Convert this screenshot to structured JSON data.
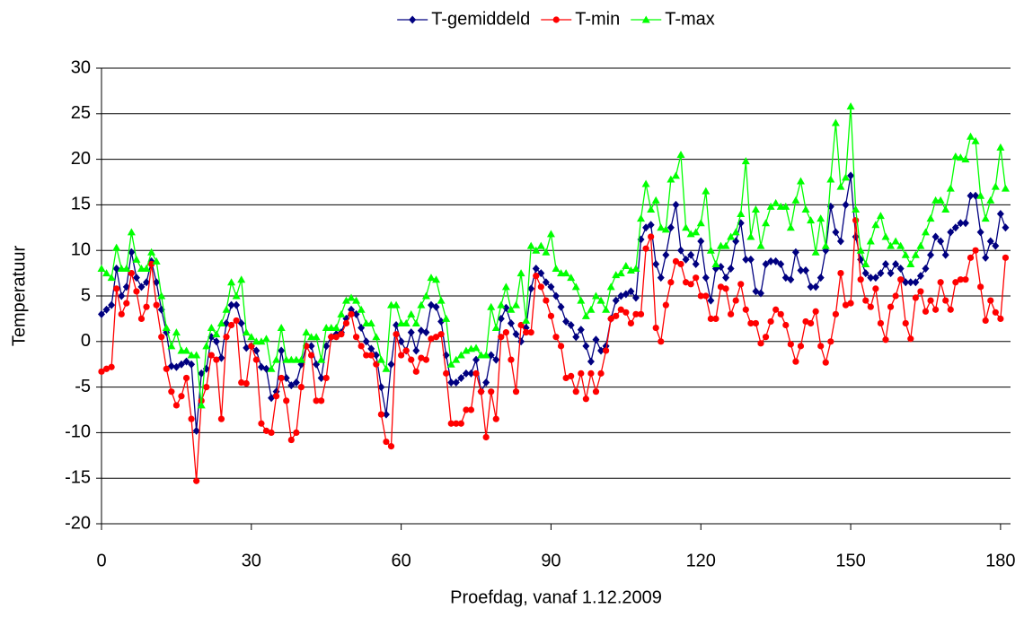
{
  "chart_data": {
    "type": "line",
    "x_label": "Proefdag, vanaf 1.12.2009",
    "y_label": "Temperatuur",
    "xlim": [
      0,
      182
    ],
    "xticks": [
      0,
      30,
      60,
      90,
      120,
      150,
      180
    ],
    "ylim": [
      -20,
      30
    ],
    "yticks": [
      -20,
      -15,
      -10,
      -5,
      0,
      5,
      10,
      15,
      20,
      25,
      30
    ],
    "grid": true,
    "legend": "top",
    "x": [
      0,
      1,
      2,
      3,
      4,
      5,
      6,
      7,
      8,
      9,
      10,
      11,
      12,
      13,
      14,
      15,
      16,
      17,
      18,
      19,
      20,
      21,
      22,
      23,
      24,
      25,
      26,
      27,
      28,
      29,
      30,
      31,
      32,
      33,
      34,
      35,
      36,
      37,
      38,
      39,
      40,
      41,
      42,
      43,
      44,
      45,
      46,
      47,
      48,
      49,
      50,
      51,
      52,
      53,
      54,
      55,
      56,
      57,
      58,
      59,
      60,
      61,
      62,
      63,
      64,
      65,
      66,
      67,
      68,
      69,
      70,
      71,
      72,
      73,
      74,
      75,
      76,
      77,
      78,
      79,
      80,
      81,
      82,
      83,
      84,
      85,
      86,
      87,
      88,
      89,
      90,
      91,
      92,
      93,
      94,
      95,
      96,
      97,
      98,
      99,
      100,
      101,
      102,
      103,
      104,
      105,
      106,
      107,
      108,
      109,
      110,
      111,
      112,
      113,
      114,
      115,
      116,
      117,
      118,
      119,
      120,
      121,
      122,
      123,
      124,
      125,
      126,
      127,
      128,
      129,
      130,
      131,
      132,
      133,
      134,
      135,
      136,
      137,
      138,
      139,
      140,
      141,
      142,
      143,
      144,
      145,
      146,
      147,
      148,
      149,
      150,
      151,
      152,
      153,
      154,
      155,
      156,
      157,
      158,
      159,
      160,
      161,
      162,
      163,
      164,
      165,
      166,
      167,
      168,
      169,
      170,
      171,
      172,
      173,
      174,
      175,
      176,
      177,
      178,
      179,
      180,
      181
    ],
    "series": [
      {
        "name": "T-gemiddeld",
        "color": "#000080",
        "marker": "diamond",
        "values": [
          3,
          3.5,
          4,
          8,
          5,
          6,
          9.8,
          7,
          6,
          6.5,
          8.8,
          6.5,
          3.5,
          1,
          -2.7,
          -2.8,
          -2.5,
          -2.2,
          -2.5,
          -9.8,
          -3.5,
          -3,
          0.5,
          0,
          -1.8,
          2,
          4,
          4,
          2,
          -0.7,
          -0.5,
          -1,
          -2.8,
          -3,
          -6.2,
          -5.5,
          -1,
          -4,
          -4.8,
          -4.5,
          -2.5,
          -0.5,
          -0.5,
          -2.5,
          -4,
          -0.5,
          0.5,
          0.8,
          1,
          2.5,
          3.5,
          3,
          1.5,
          0,
          -0.8,
          -1.5,
          -5,
          -8,
          -2.5,
          1.8,
          0,
          -1,
          1,
          -1,
          1.2,
          1,
          4,
          3.8,
          2.2,
          -1.5,
          -4.5,
          -4.5,
          -4,
          -3.5,
          -3.5,
          -2,
          -5.5,
          -4.5,
          -1.5,
          -2,
          2.5,
          3.7,
          2,
          0.8,
          0,
          1.5,
          5.8,
          8,
          7.5,
          6.5,
          6,
          5,
          3.8,
          2.2,
          1.8,
          0.5,
          1.3,
          -0.5,
          -2.2,
          0.2,
          -1,
          -0.5,
          2.5,
          4.5,
          5,
          5.2,
          5.5,
          4.8,
          11.2,
          12.5,
          12.8,
          8.5,
          7,
          9.5,
          12.5,
          15,
          10,
          9,
          9.5,
          8.5,
          11,
          7,
          4.5,
          8,
          8.2,
          7,
          8,
          11,
          13,
          9,
          9,
          5.5,
          5.3,
          8.5,
          8.8,
          8.8,
          8.5,
          7,
          6.8,
          9.8,
          7.8,
          7.8,
          6,
          6,
          7,
          10,
          14.8,
          12,
          11,
          15,
          18.2,
          11.5,
          9,
          7.5,
          7,
          7,
          7.5,
          8.5,
          7.5,
          8.5,
          8,
          6.5,
          6.5,
          6.5,
          7.2,
          8,
          9.5,
          11.5,
          11,
          9.5,
          12,
          12.5,
          13,
          13,
          16,
          16,
          12,
          9.2,
          11,
          10.5,
          14,
          12.5
        ]
      },
      {
        "name": "T-min",
        "color": "#ff0000",
        "marker": "circle",
        "values": [
          -3.3,
          -3,
          -2.8,
          5.8,
          3,
          4.2,
          7.5,
          5.5,
          2.5,
          3.8,
          8.5,
          4,
          0.5,
          -3,
          -5.5,
          -7,
          -6,
          -4,
          -8.5,
          -15.3,
          -6.5,
          -5,
          -1.5,
          -2,
          -8.5,
          0.5,
          1.8,
          2.3,
          -4.5,
          -4.6,
          -0.5,
          -2,
          -9,
          -9.8,
          -10,
          -6,
          -4,
          -6.5,
          -10.8,
          -10,
          -5,
          -0.5,
          -1.5,
          -6.5,
          -6.5,
          -4,
          0.5,
          0.5,
          0.8,
          2,
          3,
          0.5,
          -0.5,
          -1.5,
          -1.5,
          -2.5,
          -8,
          -11,
          -11.5,
          0.8,
          -1.5,
          -1,
          -2,
          -3.3,
          -1.8,
          -2,
          0.3,
          0.5,
          0.8,
          -3.5,
          -9,
          -9,
          -9,
          -7.5,
          -7.5,
          -3.5,
          -5.5,
          -10.5,
          -5.5,
          -8.5,
          0.5,
          1,
          -2,
          -5.5,
          1.8,
          1,
          1,
          7.2,
          6,
          4.5,
          2.8,
          0.5,
          -0.5,
          -4,
          -3.8,
          -5.5,
          -3.5,
          -6.3,
          -3.5,
          -5.5,
          -3.5,
          -1,
          2.5,
          2.8,
          3.5,
          3.2,
          2,
          3,
          3,
          10.2,
          11.5,
          1.5,
          0,
          4,
          6.5,
          8.8,
          8.5,
          6.5,
          6.3,
          7,
          5,
          5,
          2.5,
          2.5,
          6,
          5.8,
          3,
          4.5,
          6.3,
          3.5,
          2,
          2,
          -0.2,
          0.5,
          2.2,
          3.5,
          3,
          1.8,
          -0.3,
          -2.2,
          -0.5,
          2.2,
          2,
          3.3,
          -0.5,
          -2.3,
          0,
          3,
          7.5,
          4,
          4.2,
          13.3,
          6.8,
          4.5,
          3.8,
          5.8,
          2,
          0.2,
          3.8,
          5,
          6.8,
          2,
          0.3,
          4.8,
          5.5,
          3.3,
          4.5,
          3.5,
          6.5,
          4.5,
          3.5,
          6.5,
          6.8,
          6.8,
          9.2,
          10,
          6,
          2.3,
          4.5,
          3.2,
          2.5,
          9.2
        ]
      },
      {
        "name": "T-max",
        "color": "#00ff00",
        "marker": "triangle",
        "values": [
          8,
          7.5,
          7,
          10.3,
          8,
          8,
          12,
          9,
          8,
          8,
          9.8,
          8.8,
          5,
          1.5,
          -0.5,
          1,
          -1,
          -1,
          -1.5,
          -1.5,
          -7,
          -0.5,
          1.5,
          0.8,
          2,
          3.5,
          6.5,
          5,
          6.8,
          1,
          0.5,
          0,
          0,
          0.3,
          -3,
          -2,
          1.5,
          -2,
          -2,
          -2,
          -2,
          1,
          0.5,
          0.5,
          -2,
          1.5,
          1.5,
          1.5,
          3,
          4.5,
          4.8,
          4.5,
          3.5,
          2,
          2,
          0.5,
          -2,
          -3,
          4,
          4,
          2,
          2,
          3,
          2,
          4,
          5,
          7,
          6.8,
          4.5,
          2.5,
          -2.5,
          -2,
          -1.5,
          -1,
          -0.8,
          -0.7,
          -1.5,
          -1.5,
          3.8,
          1.5,
          4,
          6,
          3.5,
          4,
          7.5,
          2.3,
          10.5,
          10,
          10.5,
          9.8,
          11.8,
          8,
          7.5,
          7.5,
          7,
          6,
          4.5,
          2.8,
          3.5,
          5,
          4.5,
          3.5,
          6,
          7.3,
          7.5,
          8.3,
          7.8,
          8,
          13.5,
          17.3,
          14.5,
          15.5,
          12.5,
          12.3,
          17.8,
          18.2,
          20.5,
          12.5,
          11.8,
          12,
          13,
          16.5,
          10,
          8.5,
          10.5,
          10.5,
          11.5,
          12,
          14,
          19.8,
          11.5,
          14.5,
          10.5,
          13,
          14.8,
          15.2,
          14.8,
          14.8,
          12.5,
          15.5,
          17.6,
          14.5,
          13.3,
          9.8,
          13.5,
          10.5,
          17.8,
          24,
          17,
          18,
          25.8,
          14.5,
          10,
          8.5,
          11,
          12.8,
          13.8,
          11.5,
          10.5,
          11,
          10.5,
          9.5,
          8.5,
          9.5,
          10.5,
          12,
          13.5,
          15.5,
          15.5,
          14.5,
          16.8,
          20.3,
          20.2,
          20,
          22.5,
          22,
          16,
          13.5,
          15.5,
          17,
          21.3,
          16.8
        ]
      }
    ]
  }
}
